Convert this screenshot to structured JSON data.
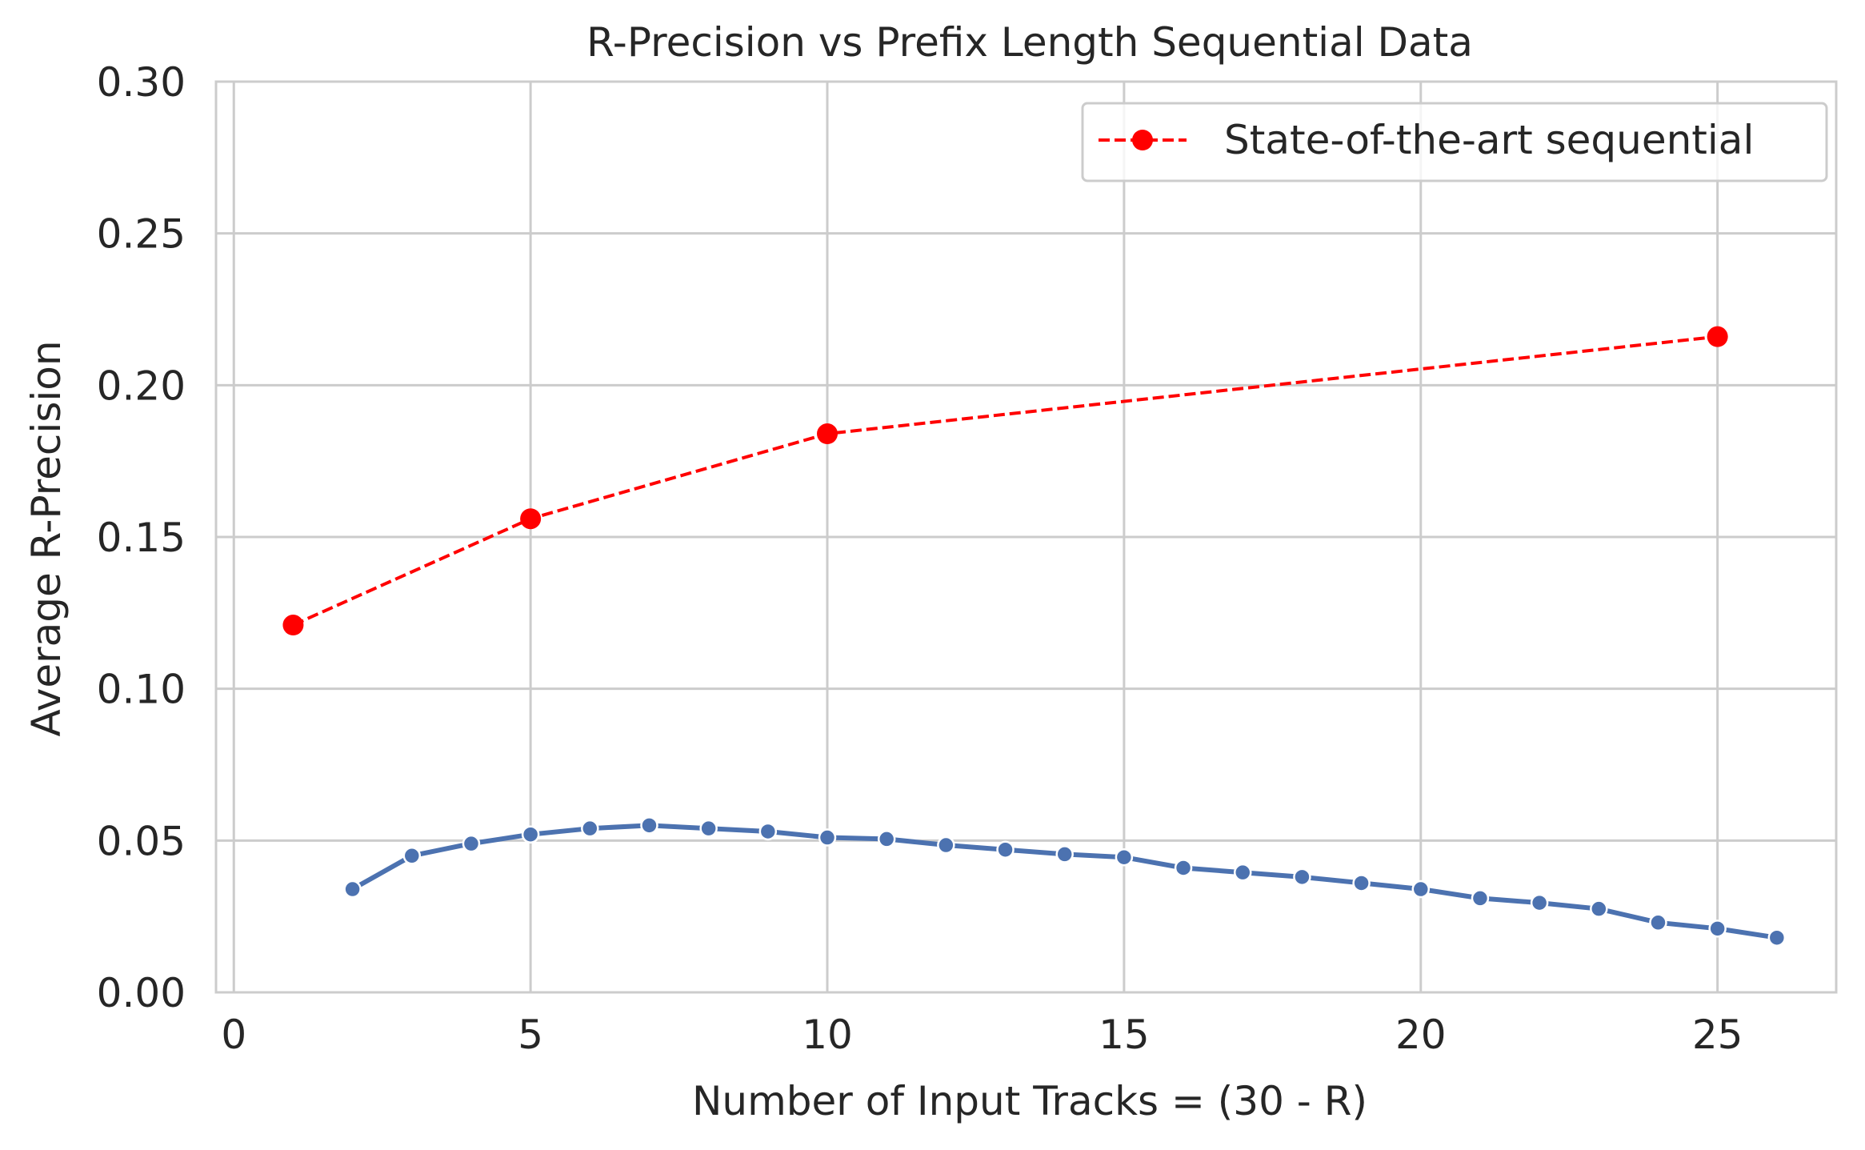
{
  "chart_data": {
    "type": "line",
    "title": "R-Precision vs Prefix Length Sequential Data",
    "xlabel": "Number of Input Tracks = (30 - R)",
    "ylabel": "Average R-Precision",
    "xlim": [
      -0.3,
      27.0
    ],
    "ylim": [
      0.0,
      0.3
    ],
    "x_ticks": [
      0,
      5,
      10,
      15,
      20,
      25
    ],
    "x_tick_labels": [
      "0",
      "5",
      "10",
      "15",
      "20",
      "25"
    ],
    "y_ticks": [
      0.0,
      0.05,
      0.1,
      0.15,
      0.2,
      0.25,
      0.3
    ],
    "y_tick_labels": [
      "0.00",
      "0.05",
      "0.10",
      "0.15",
      "0.20",
      "0.25",
      "0.30"
    ],
    "grid": true,
    "legend_position": "top-right",
    "series": [
      {
        "style": "solid",
        "marker": "circle",
        "color": "#4C72B0",
        "x": [
          2,
          3,
          4,
          5,
          6,
          7,
          8,
          9,
          10,
          11,
          12,
          13,
          14,
          15,
          16,
          17,
          18,
          19,
          20,
          21,
          22,
          23,
          24,
          25,
          26
        ],
        "y": [
          0.034,
          0.045,
          0.049,
          0.052,
          0.054,
          0.055,
          0.054,
          0.053,
          0.051,
          0.0505,
          0.0485,
          0.047,
          0.0455,
          0.0445,
          0.041,
          0.0395,
          0.038,
          0.036,
          0.034,
          0.031,
          0.0295,
          0.0275,
          0.023,
          0.021,
          0.018
        ]
      },
      {
        "name": "State-of-the-art sequential",
        "style": "dashed",
        "marker": "circle",
        "color": "#FF0000",
        "x": [
          1,
          5,
          10,
          25
        ],
        "y": [
          0.121,
          0.156,
          0.184,
          0.216
        ]
      }
    ]
  }
}
